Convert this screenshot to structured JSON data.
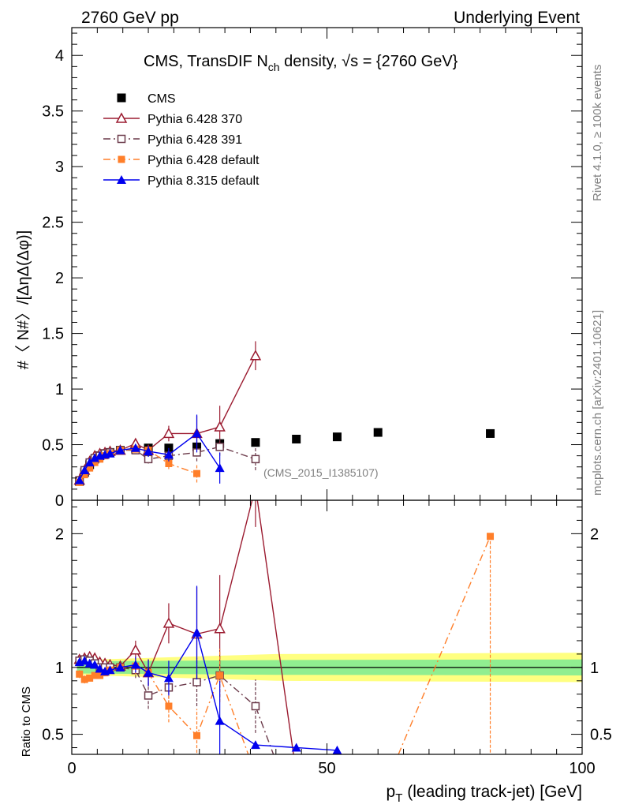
{
  "header": {
    "left": "2760 GeV pp",
    "right": "Underlying Event"
  },
  "side_labels": {
    "rivet": "Rivet 4.1.0, ≥ 100k events",
    "mcplots": "mcplots.cern.ch [arXiv:2401.10621]"
  },
  "chart_data": {
    "type": "scatter",
    "title": "CMS, TransDIF N_ch density, √s = {2760 GeV}",
    "analysis_label": "(CMS_2015_I1385107)",
    "xlabel": "p_T (leading track-jet) [GeV]",
    "ylabel_top": "#〈 N#〉/[ΔηΔ(Δφ)]",
    "ylabel_bottom": "Ratio to CMS",
    "xlim": [
      0,
      100
    ],
    "ylim_top": [
      0,
      4.25
    ],
    "ylim_bottom": [
      0.35,
      2.25
    ],
    "x_ticks": [
      0,
      50,
      100
    ],
    "y_ticks_top": [
      0,
      0.5,
      1,
      1.5,
      2,
      2.5,
      3,
      3.5,
      4
    ],
    "y_tick_labels_top": [
      "0",
      "0.5",
      "1",
      "1.5",
      "2",
      "2.5",
      "3",
      "3.5",
      "4"
    ],
    "y_ticks_bottom": [
      0.5,
      1,
      2
    ],
    "y_tick_labels_bottom": [
      "0.5",
      "1",
      "2"
    ],
    "legend": [
      {
        "name": "CMS",
        "color": "#000000",
        "marker": "filled-square",
        "line": "none"
      },
      {
        "name": "Pythia 6.428 370",
        "color": "#9b1b30",
        "marker": "open-triangle",
        "line": "solid"
      },
      {
        "name": "Pythia 6.428 391",
        "color": "#6b3a4a",
        "marker": "open-square",
        "line": "dashdot"
      },
      {
        "name": "Pythia 6.428 default",
        "color": "#ff7f2a",
        "marker": "filled-square",
        "line": "dashdot"
      },
      {
        "name": "Pythia 8.315 default",
        "color": "#0000ee",
        "marker": "filled-triangle",
        "line": "solid"
      }
    ],
    "data_band": {
      "x": [
        1,
        40,
        100
      ],
      "inner": [
        0.045,
        0.055,
        0.06
      ],
      "outer": [
        0.055,
        0.1,
        0.11
      ]
    },
    "series": [
      {
        "name": "CMS",
        "x": [
          1.5,
          2.5,
          3.5,
          4.5,
          5.5,
          6.5,
          7.5,
          9.5,
          12.5,
          15,
          19,
          24.5,
          29,
          36,
          44,
          52,
          60,
          82
        ],
        "y": [
          0.17,
          0.25,
          0.32,
          0.37,
          0.4,
          0.42,
          0.43,
          0.45,
          0.46,
          0.47,
          0.47,
          0.48,
          0.51,
          0.52,
          0.55,
          0.57,
          0.61,
          0.6
        ]
      },
      {
        "name": "Pythia 6.428 370",
        "x": [
          1.5,
          2.5,
          3.5,
          4.5,
          5.5,
          6.5,
          7.5,
          9.5,
          12.5,
          15,
          19,
          24.5,
          29,
          36
        ],
        "y": [
          0.18,
          0.27,
          0.35,
          0.4,
          0.42,
          0.43,
          0.44,
          0.45,
          0.51,
          0.45,
          0.6,
          0.6,
          0.66,
          1.3
        ],
        "yerr": [
          0.01,
          0.01,
          0.01,
          0.01,
          0.01,
          0.01,
          0.01,
          0.02,
          0.04,
          0.05,
          0.07,
          0.16,
          0.19,
          0.13
        ],
        "ratio": [
          1.06,
          1.07,
          1.08,
          1.07,
          1.04,
          1.03,
          1.02,
          1.01,
          1.13,
          0.96,
          1.33,
          1.25,
          1.29,
          2.35,
          0.2
        ],
        "ratio_x": [
          1.5,
          2.5,
          3.5,
          4.5,
          5.5,
          6.5,
          7.5,
          9.5,
          12.5,
          15,
          19,
          24.5,
          29,
          36,
          44
        ],
        "ratio_err": [
          0.03,
          0.03,
          0.02,
          0.02,
          0.02,
          0.02,
          0.02,
          0.03,
          0.07,
          0.1,
          0.15,
          0.35,
          0.4,
          0.3,
          0
        ]
      },
      {
        "name": "Pythia 6.428 391",
        "x": [
          1.5,
          2.5,
          3.5,
          4.5,
          5.5,
          6.5,
          7.5,
          9.5,
          12.5,
          15,
          19,
          24.5,
          29,
          36
        ],
        "y": [
          0.18,
          0.27,
          0.34,
          0.38,
          0.4,
          0.42,
          0.43,
          0.45,
          0.45,
          0.37,
          0.4,
          0.43,
          0.48,
          0.37
        ],
        "yerr": [
          0.01,
          0.01,
          0.01,
          0.01,
          0.01,
          0.01,
          0.01,
          0.02,
          0.03,
          0.04,
          0.05,
          0.08,
          0.08,
          0.1
        ],
        "ratio": [
          1.05,
          1.06,
          1.05,
          1.03,
          1.0,
          1.0,
          1.0,
          1.0,
          0.98,
          0.79,
          0.85,
          0.89,
          0.94,
          0.71,
          0.3
        ],
        "ratio_x": [
          1.5,
          2.5,
          3.5,
          4.5,
          5.5,
          6.5,
          7.5,
          9.5,
          12.5,
          15,
          19,
          24.5,
          29,
          36,
          40
        ],
        "ratio_err": [
          0.03,
          0.03,
          0.02,
          0.02,
          0.02,
          0.02,
          0.02,
          0.03,
          0.06,
          0.1,
          0.12,
          0.18,
          0.16,
          0.2,
          0
        ]
      },
      {
        "name": "Pythia 6.428 default",
        "x": [
          1.5,
          2.5,
          3.5,
          4.5,
          5.5,
          6.5,
          7.5,
          9.5,
          12.5,
          15,
          19,
          24.5
        ],
        "y": [
          0.16,
          0.23,
          0.29,
          0.34,
          0.37,
          0.4,
          0.42,
          0.45,
          0.46,
          0.45,
          0.33,
          0.24
        ],
        "yerr": [
          0.01,
          0.01,
          0.01,
          0.01,
          0.01,
          0.01,
          0.01,
          0.02,
          0.03,
          0.04,
          0.05,
          0.08
        ],
        "ratio": [
          0.95,
          0.91,
          0.92,
          0.94,
          0.94,
          0.96,
          0.98,
          1.0,
          1.01,
          0.96,
          0.71,
          0.49,
          0.94,
          0.2
        ],
        "ratio_x": [
          1.5,
          2.5,
          3.5,
          4.5,
          5.5,
          6.5,
          7.5,
          9.5,
          12.5,
          15,
          19,
          24.5,
          29,
          36
        ],
        "ratio_err": [
          0.03,
          0.03,
          0.02,
          0.02,
          0.02,
          0.02,
          0.02,
          0.03,
          0.06,
          0.1,
          0.12,
          0.2,
          0.2,
          0
        ],
        "ratio_tail_x": [
          64,
          82
        ],
        "ratio_tail_y": [
          0.35,
          1.98
        ]
      },
      {
        "name": "Pythia 8.315 default",
        "x": [
          1.5,
          2.5,
          3.5,
          4.5,
          5.5,
          6.5,
          7.5,
          9.5,
          12.5,
          15,
          19,
          24.5,
          29
        ],
        "y": [
          0.18,
          0.27,
          0.34,
          0.38,
          0.4,
          0.41,
          0.42,
          0.45,
          0.47,
          0.44,
          0.41,
          0.6,
          0.29
        ],
        "yerr": [
          0.01,
          0.01,
          0.01,
          0.01,
          0.01,
          0.01,
          0.01,
          0.02,
          0.03,
          0.05,
          0.06,
          0.17,
          0.14
        ],
        "ratio": [
          1.04,
          1.05,
          1.03,
          1.02,
          0.99,
          0.97,
          0.98,
          1.0,
          1.02,
          0.96,
          0.92,
          1.26,
          0.6,
          0.42,
          0.4,
          0.38
        ],
        "ratio_x": [
          1.5,
          2.5,
          3.5,
          4.5,
          5.5,
          6.5,
          7.5,
          9.5,
          12.5,
          15,
          19,
          24.5,
          29,
          36,
          44,
          52
        ],
        "ratio_err": [
          0.03,
          0.03,
          0.02,
          0.02,
          0.02,
          0.02,
          0.02,
          0.03,
          0.06,
          0.1,
          0.13,
          0.35,
          0.3,
          0,
          0,
          0
        ]
      }
    ]
  }
}
